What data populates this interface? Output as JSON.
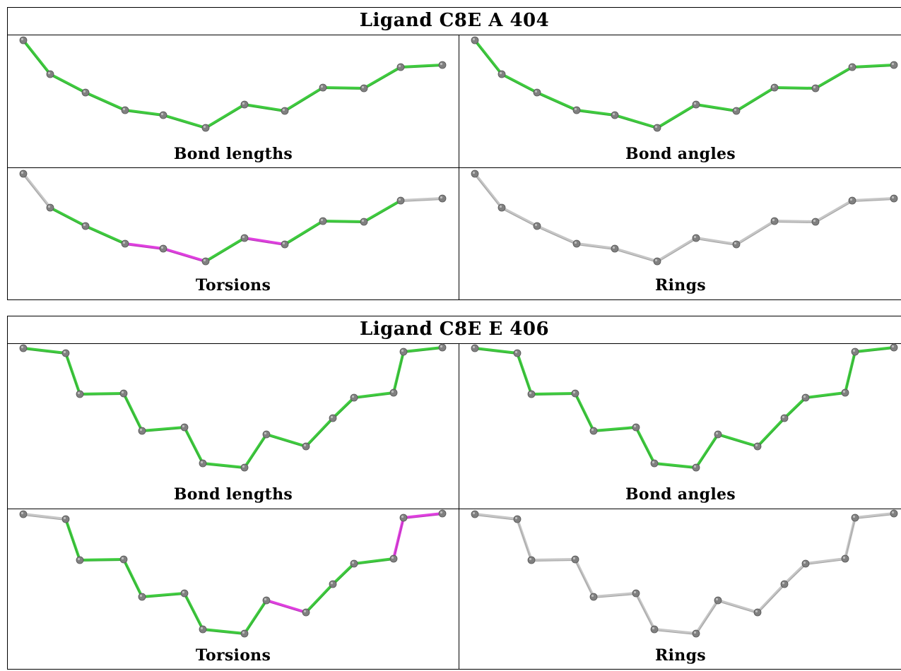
{
  "colors": {
    "green": "#3fcc3f",
    "green_dark": "#2a8f2a",
    "magenta": "#e040e0",
    "grey_bond": "#c6c6c6",
    "atom": "#808080"
  },
  "ligands": [
    {
      "title": "Ligand C8E A 404",
      "panels": [
        {
          "label": "Bond lengths",
          "bonds": [
            "green",
            "green",
            "green",
            "green",
            "green",
            "green",
            "green",
            "green",
            "green",
            "green",
            "green"
          ]
        },
        {
          "label": "Bond angles",
          "bonds": [
            "green",
            "green",
            "green",
            "green",
            "green",
            "green",
            "green",
            "green",
            "green",
            "green",
            "green"
          ]
        },
        {
          "label": "Torsions",
          "bonds": [
            "grey_bond",
            "green",
            "green",
            "magenta",
            "magenta",
            "green",
            "magenta",
            "green",
            "green",
            "green",
            "grey_bond"
          ]
        },
        {
          "label": "Rings",
          "bonds": [
            "grey_bond",
            "grey_bond",
            "grey_bond",
            "grey_bond",
            "grey_bond",
            "grey_bond",
            "grey_bond",
            "grey_bond",
            "grey_bond",
            "grey_bond",
            "grey_bond"
          ]
        }
      ]
    },
    {
      "title": "Ligand C8E E 406",
      "panels": [
        {
          "label": "Bond lengths",
          "bonds": [
            "green",
            "green",
            "green",
            "green",
            "green",
            "green",
            "green",
            "green",
            "green",
            "green",
            "green",
            "green",
            "green",
            "green",
            "green",
            "green",
            "green",
            "green",
            "green",
            "green"
          ]
        },
        {
          "label": "Bond angles",
          "bonds": [
            "green",
            "green",
            "green",
            "green",
            "green",
            "green",
            "green",
            "green",
            "green",
            "green",
            "green",
            "green",
            "green",
            "green",
            "green",
            "green",
            "green",
            "green",
            "green",
            "green"
          ]
        },
        {
          "label": "Torsions",
          "bonds": [
            "grey_bond",
            "green",
            "green",
            "green",
            "green",
            "green",
            "green",
            "green",
            "magenta",
            "green",
            "green",
            "green",
            "magenta",
            "magenta",
            "magenta",
            "magenta",
            "green",
            "green",
            "grey_bond",
            "grey_bond"
          ]
        },
        {
          "label": "Rings",
          "bonds": [
            "grey_bond",
            "grey_bond",
            "grey_bond",
            "grey_bond",
            "grey_bond",
            "grey_bond",
            "grey_bond",
            "grey_bond",
            "grey_bond",
            "grey_bond",
            "grey_bond",
            "grey_bond",
            "grey_bond",
            "grey_bond",
            "grey_bond",
            "grey_bond",
            "grey_bond",
            "grey_bond",
            "grey_bond",
            "grey_bond"
          ]
        }
      ]
    }
  ]
}
